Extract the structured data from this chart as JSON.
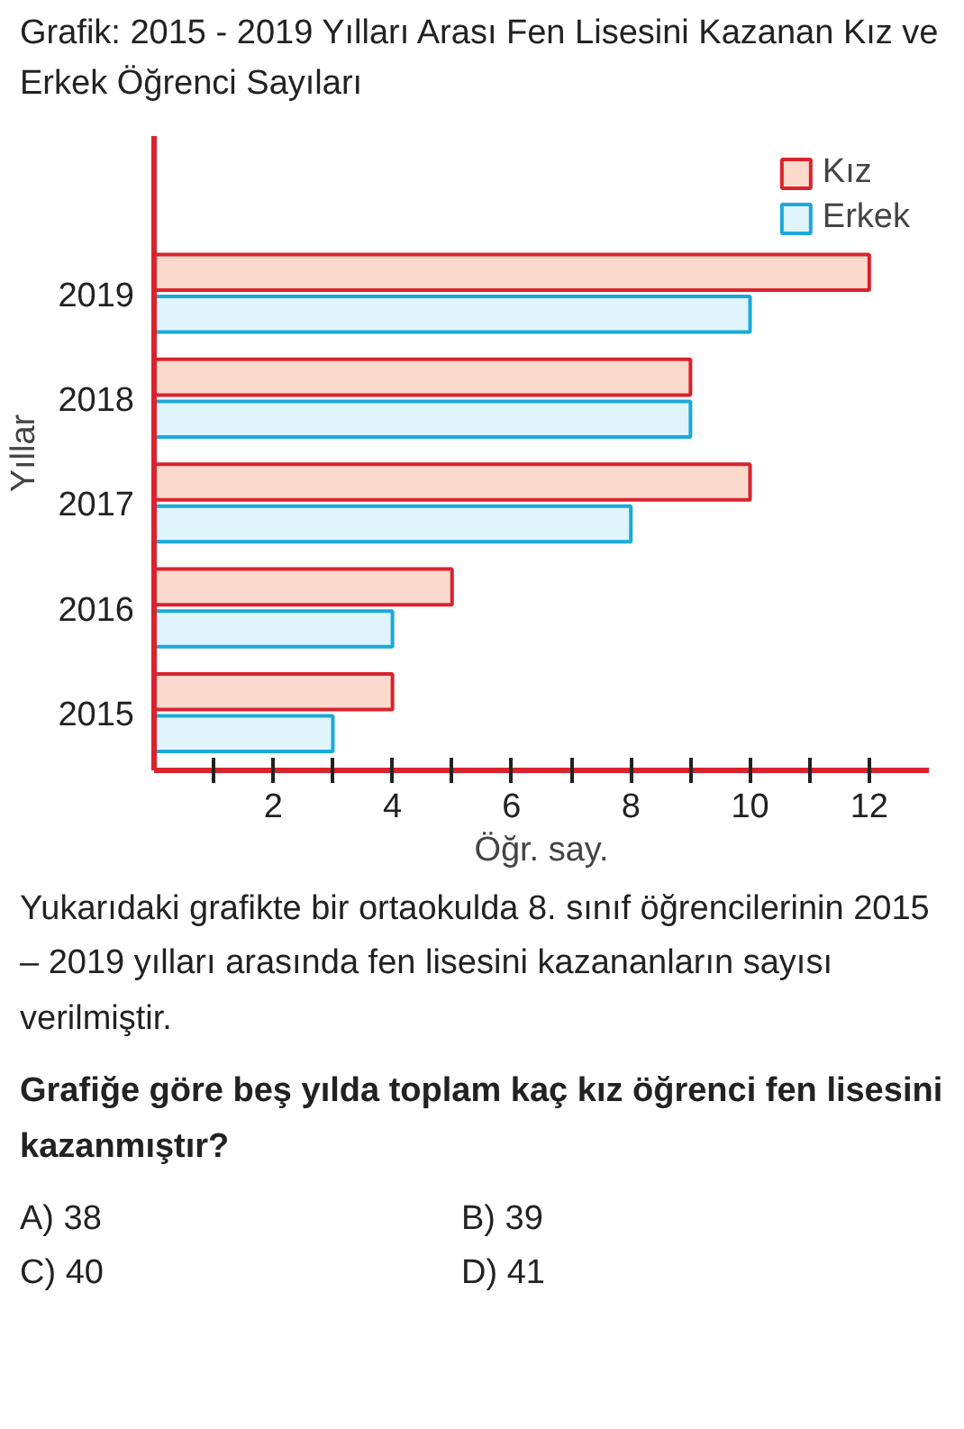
{
  "chart_data": {
    "type": "bar",
    "orientation": "horizontal",
    "title": "Grafik: 2015 - 2019 Yılları Arası Fen Lisesini Kazanan Kız ve Erkek Öğrenci Sayıları",
    "ylabel": "Yıllar",
    "xlabel": "Öğr. say.",
    "categories": [
      "2019",
      "2018",
      "2017",
      "2016",
      "2015"
    ],
    "series": [
      {
        "name": "Kız",
        "color": "#fbdacd",
        "values": [
          12,
          9,
          10,
          5,
          4
        ]
      },
      {
        "name": "Erkek",
        "color": "#dff5fb",
        "values": [
          10,
          9,
          8,
          4,
          3
        ]
      }
    ],
    "xlim": [
      0,
      13
    ],
    "xticks": [
      {
        "value": 1,
        "label": null
      },
      2,
      {
        "value": 3,
        "label": null
      },
      4,
      {
        "value": 5,
        "label": null
      },
      6,
      {
        "value": 7,
        "label": null
      },
      8,
      {
        "value": 9,
        "label": null
      },
      10,
      {
        "value": 11,
        "label": null
      },
      12
    ],
    "grid": false,
    "legend": "top right",
    "annotations": [
      "Yukarıdaki grafikte bir ortaokulda 8. sınıf öğrencilerinin 2015 – 2019 yılları arasında fen lisesini kazananların sayısı verilmiştir.",
      "Grafiğe göre beş yılda toplam kaç kız öğrenci fen lisesini kazanmıştır?",
      "A)  38",
      "B)  39",
      "C)  40",
      "D)  41"
    ]
  }
}
